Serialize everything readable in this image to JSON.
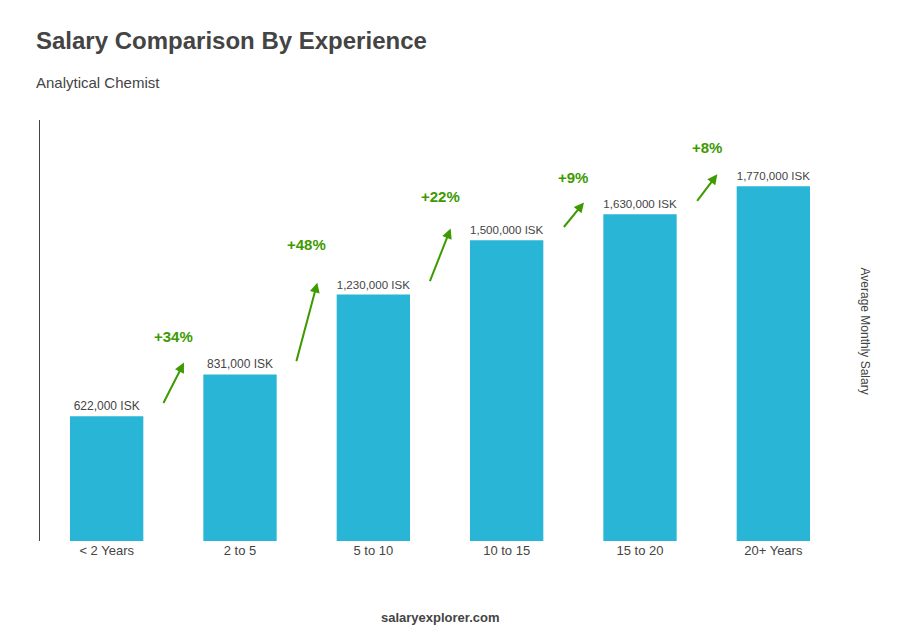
{
  "chart_data": {
    "type": "bar",
    "title": "Salary Comparison By Experience",
    "subtitle": "Analytical Chemist",
    "categories": [
      "< 2 Years",
      "2 to 5",
      "5 to 10",
      "10 to 15",
      "15 to 20",
      "20+ Years"
    ],
    "values": [
      622000,
      831000,
      1230000,
      1500000,
      1630000,
      1770000
    ],
    "value_labels": [
      "622,000 ISK",
      "831,000 ISK",
      "1,230,000 ISK",
      "1,500,000 ISK",
      "1,630,000 ISK",
      "1,770,000 ISK"
    ],
    "data_labels": true,
    "annotations": [
      "+34%",
      "+48%",
      "+22%",
      "+9%",
      "+8%"
    ],
    "ylabel": "Average Monthly Salary",
    "footer": "salaryexplorer.com",
    "color": "#29b6d6",
    "ylim": [
      0,
      2100000
    ],
    "grid": false,
    "tick_labels": "x"
  }
}
